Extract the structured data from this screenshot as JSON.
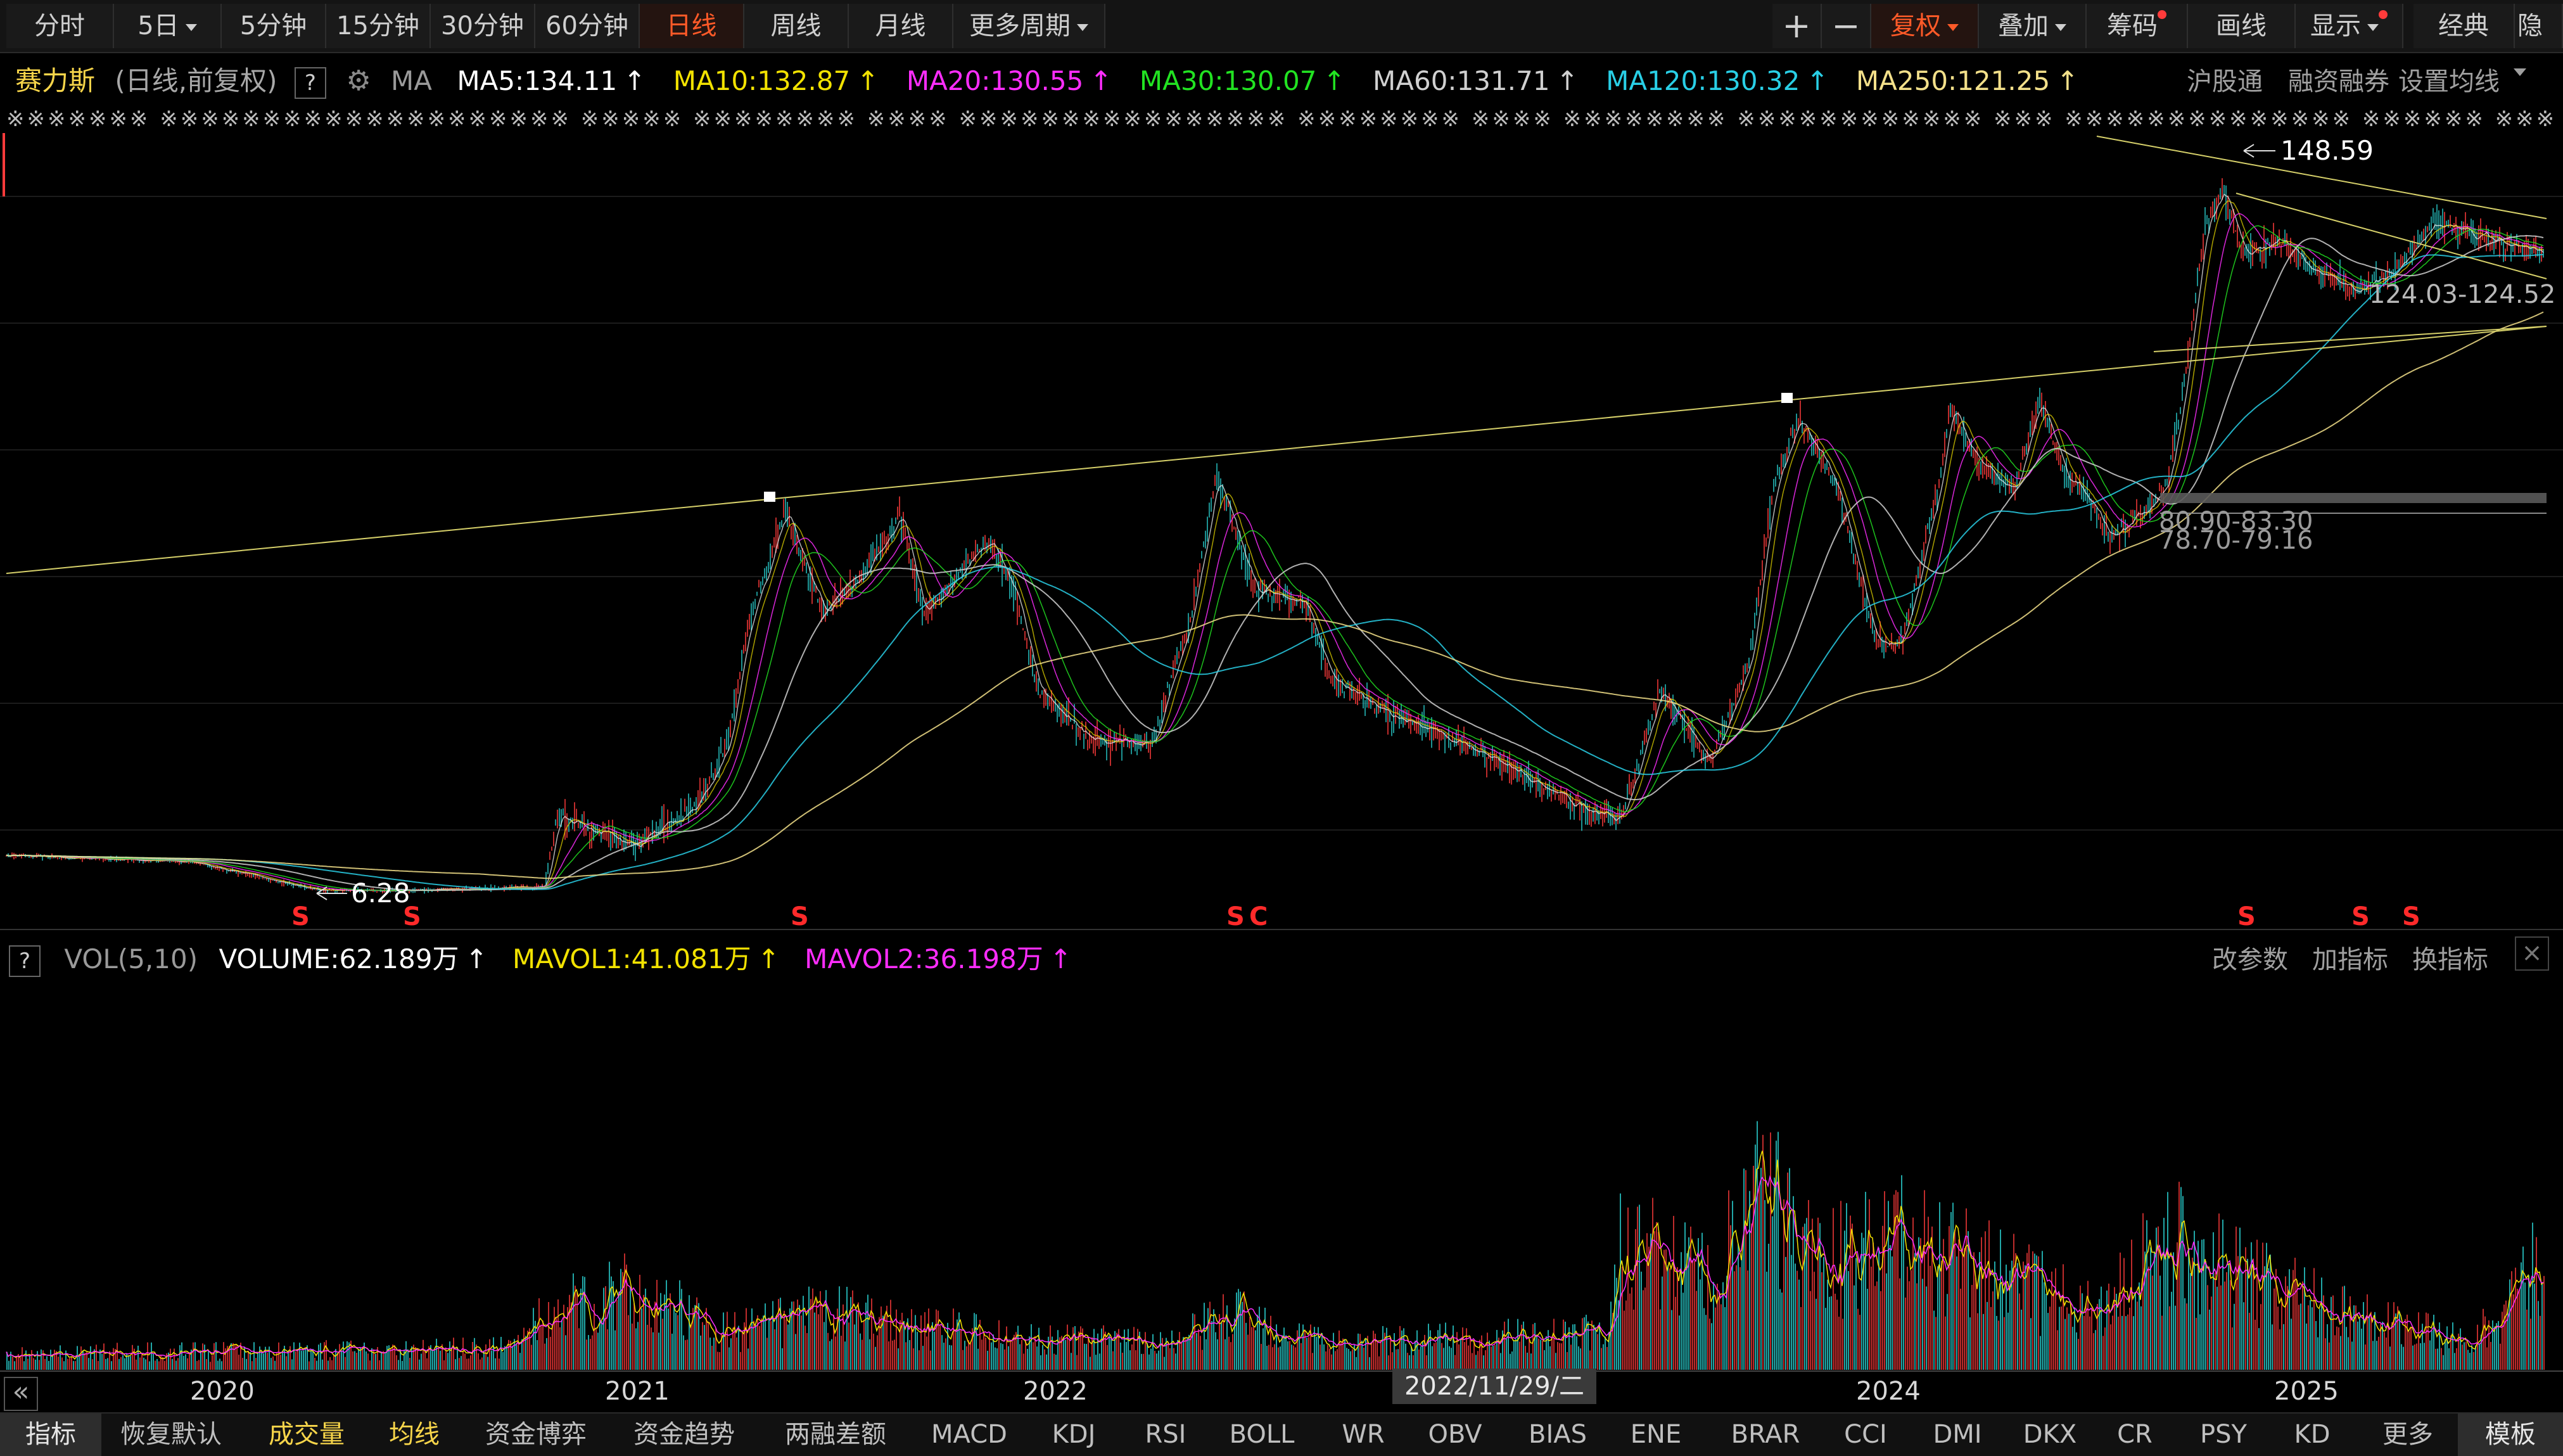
{
  "period_tabs": [
    {
      "label": "分时",
      "active": false,
      "caret": false
    },
    {
      "label": "5日",
      "active": false,
      "caret": true
    },
    {
      "label": "5分钟",
      "active": false,
      "caret": false
    },
    {
      "label": "15分钟",
      "active": false,
      "caret": false
    },
    {
      "label": "30分钟",
      "active": false,
      "caret": false
    },
    {
      "label": "60分钟",
      "active": false,
      "caret": false
    },
    {
      "label": "日线",
      "active": true,
      "caret": false
    },
    {
      "label": "周线",
      "active": false,
      "caret": false
    },
    {
      "label": "月线",
      "active": false,
      "caret": false
    },
    {
      "label": "更多周期",
      "active": false,
      "caret": true
    }
  ],
  "toolbar_right": {
    "zoom_in": "+",
    "zoom_out": "−",
    "adjust": "复权",
    "overlay": "叠加",
    "chips": "筹码",
    "draw": "画线",
    "display": "显示",
    "classic": "经典",
    "hide": "隐藏"
  },
  "legend": {
    "stock_name": "赛力斯",
    "mode": "(日线,前复权)",
    "help": "?",
    "indicator": "MA",
    "ma5": "MA5:134.11",
    "ma10": "MA10:132.87",
    "ma20": "MA20:130.55",
    "ma30": "MA30:130.07",
    "ma60": "MA60:131.71",
    "ma120": "MA120:130.32",
    "ma250": "MA250:121.25",
    "arrow": "↑",
    "links": [
      "沪股通",
      "融资融券",
      "设置均线"
    ]
  },
  "colors": {
    "ma5": "#ffffff",
    "ma10": "#f2e200",
    "ma20": "#ff2dff",
    "ma30": "#22e322",
    "ma60": "#d0d0d0",
    "ma120": "#29cfe6",
    "ma250": "#f3e08a",
    "up": "#ff3b3b",
    "down": "#27c4c4",
    "accent": "#ff5a28"
  },
  "info_row": "※※※※※※※ ※※※※※※※※※※※※※※※※※※※※ ※※※※※ ※※※※※※※※ ※※※※ ※※※※※※※※※※※※※※※※ ※※※※※※※※ ※※※※ ※※※※※※※※ ※※※※※※※※※※※※ ※※※ ※※※※※※※※※※※※※※ ※※※※※※ ※※※※※ ※※ ※※※",
  "price_labels": {
    "high": "148.59",
    "low": "6.28",
    "range_top": "124.03-124.52",
    "range_a": "80.90-83.30",
    "range_b": "78.70-79.16"
  },
  "signal_marks": [
    "S",
    "S",
    "S",
    "S",
    "C",
    "S",
    "S",
    "S"
  ],
  "volume_legend": {
    "help": "?",
    "name": "VOL(5,10)",
    "volume": "VOLUME:62.189万",
    "mavol1": "MAVOL1:41.081万",
    "mavol2": "MAVOL2:36.198万",
    "arrow": "↑",
    "actions": [
      "改参数",
      "加指标",
      "换指标"
    ],
    "close": "×"
  },
  "x_axis_years": [
    "2020",
    "2021",
    "2022",
    "2024",
    "2025"
  ],
  "cursor_date": "2022/11/29/二",
  "indicator_tabs": [
    "指标",
    "恢复默认",
    "成交量",
    "均线",
    "资金博弈",
    "资金趋势",
    "两融差额",
    "MACD",
    "KDJ",
    "RSI",
    "BOLL",
    "WR",
    "OBV",
    "BIAS",
    "ENE",
    "BRAR",
    "CCI",
    "DMI",
    "DKX",
    "CR",
    "PSY",
    "KD",
    "更多",
    "模板"
  ],
  "expand_icon": "«"
}
